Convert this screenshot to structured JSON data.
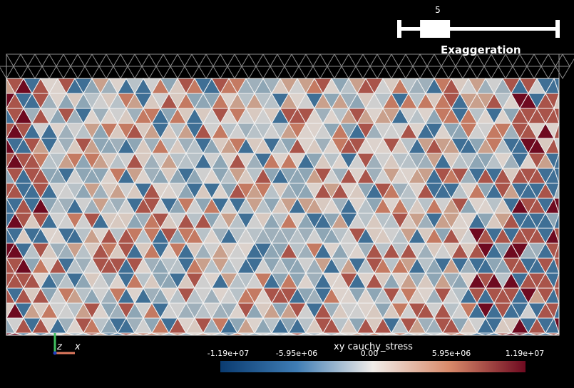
{
  "exaggeration_slider": {
    "value": "5",
    "title": "Exaggeration",
    "fraction": 0.15
  },
  "axes": {
    "x_label": "x",
    "z_label": "z"
  },
  "colorbar": {
    "title": "xy cauchy_stress",
    "ticks": [
      "-1.19e+07",
      "-5.95e+06",
      "0.00",
      "5.95e+06",
      "1.19e+07"
    ],
    "colors": [
      "#0a3b70",
      "#3f7db5",
      "#e8e8e8",
      "#d98a6a",
      "#6e0a20"
    ]
  }
}
